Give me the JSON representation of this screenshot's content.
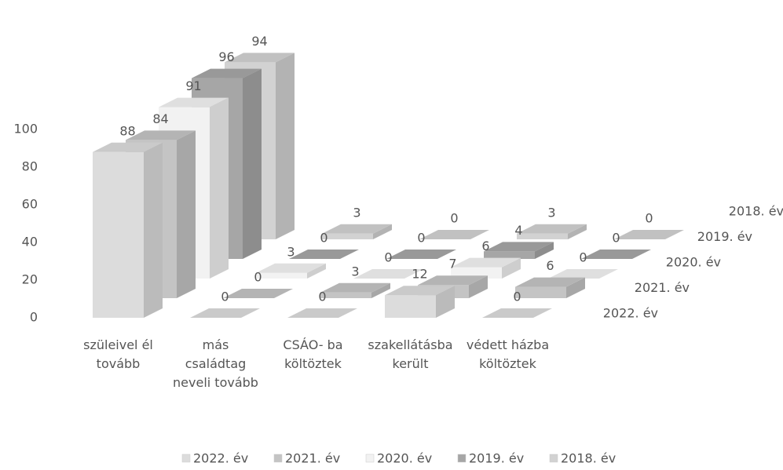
{
  "chart_data": {
    "type": "bar3d",
    "categories": [
      "szüleivel él tovább",
      "más családtag neveli tovább",
      "CSÁO- ba költöztek",
      "szakellátásba került",
      "védett házba költöztek"
    ],
    "series": [
      {
        "name": "2022. év",
        "color": "#dcdcdc",
        "values": [
          88,
          0,
          0,
          12,
          0
        ]
      },
      {
        "name": "2021. év",
        "color": "#c4c4c4",
        "values": [
          84,
          0,
          3,
          7,
          6
        ]
      },
      {
        "name": "2020. év",
        "color": "#f2f2f2",
        "values": [
          91,
          3,
          0,
          6,
          0
        ]
      },
      {
        "name": "2019. év",
        "color": "#a6a6a6",
        "values": [
          96,
          0,
          0,
          4,
          0
        ]
      },
      {
        "name": "2018. év",
        "color": "#d2d2d2",
        "values": [
          94,
          3,
          0,
          3,
          0
        ]
      }
    ],
    "ylim": [
      0,
      100
    ],
    "yticks": [
      0,
      20,
      40,
      60,
      80,
      100
    ],
    "legend": "bottom"
  }
}
